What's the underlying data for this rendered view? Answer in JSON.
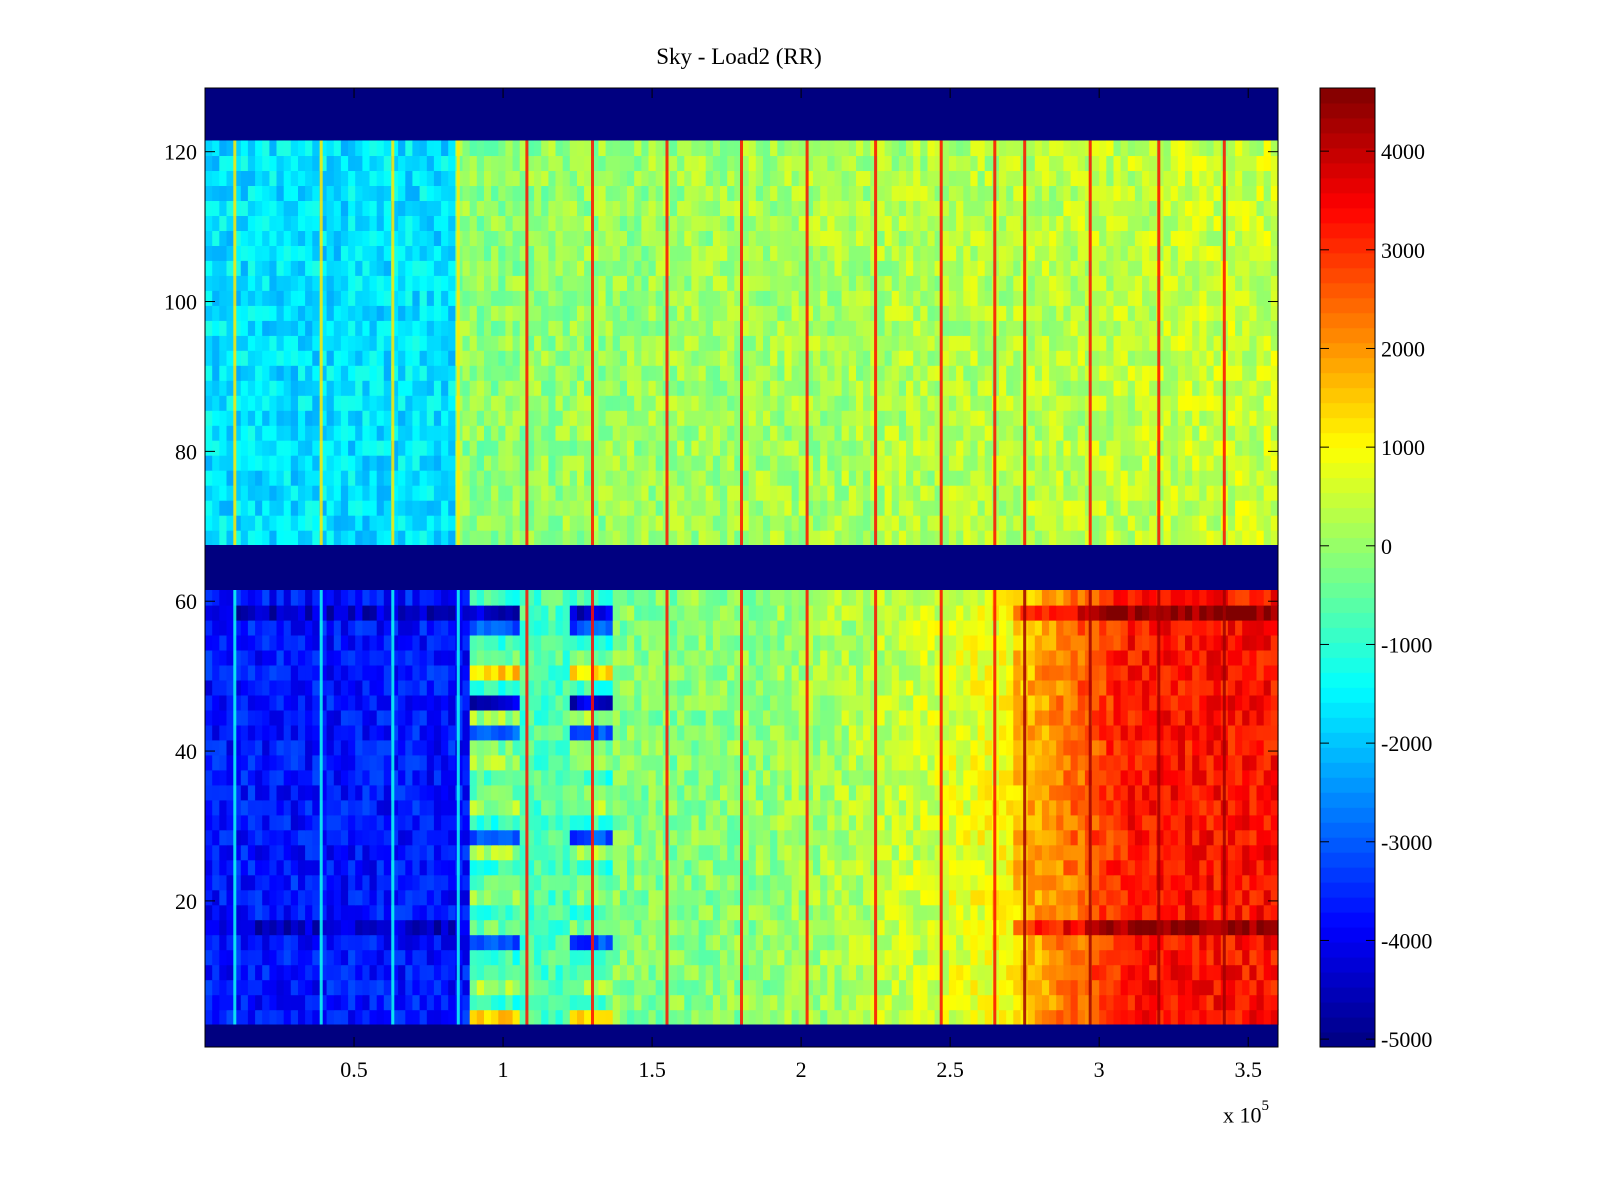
{
  "chart_data": {
    "type": "heatmap",
    "title": "Sky - Load2 (RR)",
    "xlabel": "",
    "ylabel": "",
    "x_multiplier_label": "x 10",
    "x_multiplier_exponent": "5",
    "xlim": [
      0,
      360000
    ],
    "ylim": [
      0.5,
      128.5
    ],
    "x_ticks": [
      50000,
      100000,
      150000,
      200000,
      250000,
      300000,
      350000
    ],
    "x_tick_labels": [
      "0.5",
      "1",
      "1.5",
      "2",
      "2.5",
      "3",
      "3.5"
    ],
    "y_ticks": [
      20,
      40,
      60,
      80,
      100,
      120
    ],
    "y_tick_labels": [
      "20",
      "40",
      "60",
      "80",
      "100",
      "120"
    ],
    "colormap": "jet",
    "clim": [
      -5080,
      4640
    ],
    "colorbar": {
      "placement": "right",
      "ticks": [
        -5000,
        -4000,
        -3000,
        -2000,
        -1000,
        0,
        1000,
        2000,
        3000,
        4000
      ],
      "tick_labels": [
        "-5000",
        "-4000",
        "-3000",
        "-2000",
        "-1000",
        "0",
        "1000",
        "2000",
        "3000",
        "4000"
      ]
    },
    "grid": false,
    "masked_row_bands": [
      {
        "from": 0.5,
        "to": 3.5,
        "value": -5080
      },
      {
        "from": 61.5,
        "to": 67.5,
        "value": -5080
      },
      {
        "from": 121.5,
        "to": 128.5,
        "value": -5080
      }
    ],
    "regions": [
      {
        "name": "upper-block-left",
        "rows": [
          67.5,
          121.5
        ],
        "x_range": [
          0,
          85000
        ],
        "approx_value": -1700
      },
      {
        "name": "upper-block-right",
        "rows": [
          67.5,
          121.5
        ],
        "x_range": [
          85000,
          360000
        ],
        "approx_value": 300
      },
      {
        "name": "lower-block-left",
        "rows": [
          3.5,
          61.5
        ],
        "x_range": [
          0,
          88000
        ],
        "approx_value": -3700
      },
      {
        "name": "lower-block-banded-1",
        "rows": [
          3.5,
          61.5
        ],
        "x_range": [
          88000,
          105000
        ],
        "approx_value": -1500
      },
      {
        "name": "lower-block-mid",
        "rows": [
          3.5,
          61.5
        ],
        "x_range": [
          105000,
          122000
        ],
        "approx_value": -700
      },
      {
        "name": "lower-block-banded-2",
        "rows": [
          3.5,
          61.5
        ],
        "x_range": [
          122000,
          138000
        ],
        "approx_value": -1500
      },
      {
        "name": "lower-block-center",
        "rows": [
          3.5,
          61.5
        ],
        "x_range": [
          138000,
          272000
        ],
        "approx_value": 300
      },
      {
        "name": "lower-block-right",
        "rows": [
          3.5,
          61.5
        ],
        "x_range": [
          272000,
          360000
        ],
        "approx_value": 2700
      }
    ],
    "vertical_streaks_x": [
      10000,
      39000,
      63000,
      85000,
      108000,
      130000,
      155000,
      180000,
      202000,
      225000,
      247000,
      265000,
      275000,
      297000,
      320000,
      342000
    ],
    "dark_rows_lower": [
      15,
      16,
      57,
      58
    ]
  }
}
